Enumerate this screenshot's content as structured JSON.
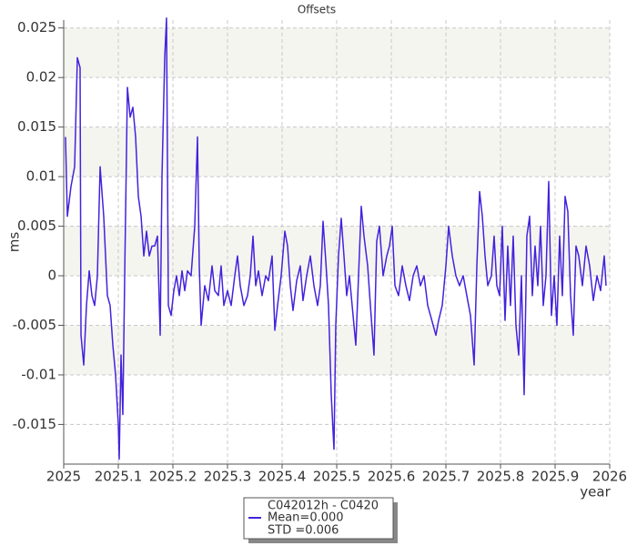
{
  "chart_data": {
    "type": "line",
    "title": "Offsets",
    "ylabel": "ms",
    "xlabel": "year",
    "xlim": [
      2025,
      2026
    ],
    "xticks": [
      2025,
      2025.1,
      2025.2,
      2025.3,
      2025.4,
      2025.5,
      2025.6,
      2025.7,
      2025.8,
      2025.9,
      2026
    ],
    "ylim": [
      -0.019,
      0.0258
    ],
    "yticks": [
      -0.015,
      -0.01,
      -0.005,
      0,
      0.005,
      0.01,
      0.015,
      0.02,
      0.025
    ],
    "grid": true,
    "legend": "bottom",
    "legend_stats": [
      "Mean=0.000",
      "STD =0.006"
    ],
    "x": [
      2025.0033,
      2025.0067,
      2025.0133,
      2025.02,
      2025.025,
      2025.03,
      2025.0317,
      2025.0367,
      2025.0417,
      2025.0467,
      2025.0517,
      2025.0567,
      2025.0617,
      2025.0667,
      2025.0733,
      2025.08,
      2025.085,
      2025.09,
      2025.095,
      2025.1,
      2025.1017,
      2025.105,
      2025.1083,
      2025.1117,
      2025.1167,
      2025.1217,
      2025.1267,
      2025.1317,
      2025.1367,
      2025.1417,
      2025.1467,
      2025.1517,
      2025.1567,
      2025.1617,
      2025.1667,
      2025.1717,
      2025.1767,
      2025.18,
      2025.185,
      2025.1883,
      2025.1917,
      2025.1967,
      2025.2017,
      2025.2067,
      2025.2117,
      2025.2167,
      2025.2217,
      2025.2267,
      2025.2333,
      2025.24,
      2025.245,
      2025.2483,
      2025.2517,
      2025.2583,
      2025.265,
      2025.2717,
      2025.2767,
      2025.2833,
      2025.2883,
      2025.2933,
      2025.3,
      2025.3067,
      2025.3133,
      2025.3183,
      2025.3233,
      2025.33,
      2025.3367,
      2025.3417,
      2025.3467,
      2025.3517,
      2025.3567,
      2025.3633,
      2025.37,
      2025.375,
      2025.3817,
      2025.3867,
      2025.3917,
      2025.3983,
      2025.405,
      2025.41,
      2025.415,
      2025.42,
      2025.4267,
      2025.4333,
      2025.4383,
      2025.445,
      2025.4517,
      2025.4583,
      2025.465,
      2025.47,
      2025.475,
      2025.48,
      2025.485,
      2025.49,
      2025.495,
      2025.4983,
      2025.5033,
      2025.5083,
      2025.5133,
      2025.5183,
      2025.5233,
      2025.5283,
      2025.535,
      2025.54,
      2025.545,
      2025.55,
      2025.5567,
      2025.5617,
      2025.5683,
      2025.5733,
      2025.5783,
      2025.585,
      2025.5917,
      2025.5967,
      2025.6017,
      2025.6067,
      2025.6133,
      2025.62,
      2025.6267,
      2025.6333,
      2025.64,
      2025.6467,
      2025.6533,
      2025.66,
      2025.6667,
      2025.6717,
      2025.6767,
      2025.6817,
      2025.6867,
      2025.6933,
      2025.7,
      2025.705,
      2025.7117,
      2025.7183,
      2025.725,
      2025.7317,
      2025.7383,
      2025.745,
      2025.7517,
      2025.7567,
      2025.7617,
      2025.7667,
      2025.7717,
      2025.7767,
      2025.7833,
      2025.7883,
      2025.7933,
      2025.7983,
      2025.8033,
      2025.8083,
      2025.8133,
      2025.8183,
      2025.8233,
      2025.8283,
      2025.8333,
      2025.8383,
      2025.8433,
      2025.8483,
      2025.8533,
      2025.8583,
      2025.8633,
      2025.8683,
      2025.8733,
      2025.8783,
      2025.8833,
      2025.8883,
      2025.8933,
      2025.8983,
      2025.9033,
      2025.9083,
      2025.9133,
      2025.9183,
      2025.9233,
      2025.9283,
      2025.9333,
      2025.9383,
      2025.9433,
      2025.95,
      2025.9567,
      2025.9633,
      2025.97,
      2025.9767,
      2025.9833,
      2025.99,
      2025.9933
    ],
    "series": [
      {
        "name": "C042012h - C0420",
        "color": "#4422dd",
        "values": [
          0.014,
          0.006,
          0.009,
          0.011,
          0.022,
          0.021,
          -0.006,
          -0.009,
          -0.003,
          0.0005,
          -0.002,
          -0.003,
          0,
          0.011,
          0.006,
          -0.002,
          -0.003,
          -0.007,
          -0.01,
          -0.015,
          -0.0185,
          -0.008,
          -0.014,
          0,
          0.019,
          0.016,
          0.017,
          0.014,
          0.008,
          0.006,
          0.002,
          0.0045,
          0.002,
          0.003,
          0.003,
          0.004,
          -0.006,
          0.01,
          0.022,
          0.026,
          -0.003,
          -0.004,
          -0.0015,
          0,
          -0.002,
          0.0005,
          -0.0015,
          0.0005,
          0,
          0.005,
          0.014,
          0.001,
          -0.005,
          -0.001,
          -0.0025,
          0.001,
          -0.0015,
          -0.002,
          0.001,
          -0.003,
          -0.0015,
          -0.003,
          0,
          0.002,
          -0.001,
          -0.003,
          -0.002,
          0,
          0.004,
          -0.001,
          0.0005,
          -0.002,
          0,
          -0.0005,
          0.002,
          -0.0055,
          -0.003,
          0,
          0.0045,
          0.003,
          -0.001,
          -0.0035,
          -0.0005,
          0.001,
          -0.0025,
          0,
          0.002,
          -0.001,
          -0.003,
          -0.001,
          0.0055,
          0.0015,
          -0.003,
          -0.012,
          -0.0175,
          -0.005,
          0.002,
          0.0058,
          0.002,
          -0.002,
          0,
          -0.003,
          -0.007,
          0,
          0.007,
          0.004,
          0.001,
          -0.003,
          -0.008,
          0.0035,
          0.005,
          0,
          0.002,
          0.003,
          0.005,
          -0.001,
          -0.002,
          0.001,
          -0.001,
          -0.0025,
          0,
          0.001,
          -0.001,
          0,
          -0.003,
          -0.004,
          -0.005,
          -0.006,
          -0.0045,
          -0.003,
          0.001,
          0.005,
          0.002,
          0,
          -0.001,
          0,
          -0.002,
          -0.004,
          -0.009,
          0.001,
          0.0085,
          0.006,
          0.002,
          -0.001,
          0,
          0.004,
          -0.001,
          -0.002,
          0.005,
          -0.0045,
          0.003,
          -0.003,
          0.004,
          -0.005,
          -0.008,
          0,
          -0.012,
          0.004,
          0.006,
          -0.002,
          0.003,
          -0.001,
          0.005,
          -0.003,
          0,
          0.0095,
          -0.004,
          0,
          -0.005,
          0.004,
          -0.002,
          0.008,
          0.0065,
          -0.002,
          -0.006,
          0.003,
          0.002,
          -0.001,
          0.003,
          0.001,
          -0.0025,
          0,
          -0.0015,
          0.002,
          -0.001
        ]
      }
    ]
  }
}
